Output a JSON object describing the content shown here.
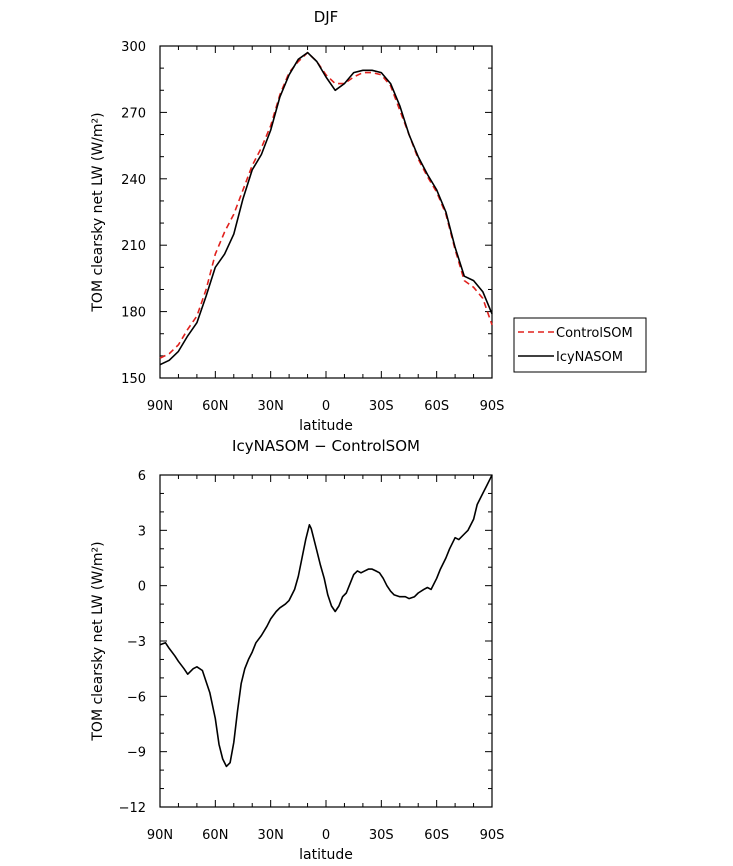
{
  "chart_data": [
    {
      "type": "line",
      "title": "DJF",
      "xlabel": "latitude",
      "ylabel": "TOM clearsky net LW (W/m²)",
      "x_tick_labels": [
        "90N",
        "60N",
        "30N",
        "0",
        "30S",
        "60S",
        "90S"
      ],
      "y_tick_labels": [
        "150",
        "180",
        "210",
        "240",
        "270",
        "300"
      ],
      "xlim": [
        -90,
        90
      ],
      "ylim": [
        150,
        300
      ],
      "grid": false,
      "legend_position": "right",
      "series": [
        {
          "name": "ControlSOM",
          "color": "#e0201c",
          "dash": "dashed",
          "x": [
            -90,
            -85,
            -80,
            -75,
            -70,
            -65,
            -60,
            -55,
            -50,
            -45,
            -40,
            -35,
            -30,
            -25,
            -20,
            -15,
            -10,
            -5,
            0,
            5,
            10,
            15,
            20,
            25,
            30,
            35,
            40,
            45,
            50,
            55,
            60,
            65,
            70,
            75,
            80,
            85,
            90
          ],
          "y": [
            159,
            161,
            165,
            172,
            178,
            190,
            206,
            216,
            224,
            235,
            246,
            254,
            264,
            278,
            288,
            293,
            297,
            293,
            287,
            283,
            283,
            286,
            288,
            288,
            287,
            282,
            271,
            260,
            249,
            241,
            234,
            224,
            208,
            194,
            191,
            186,
            174
          ]
        },
        {
          "name": "IcyNASOM",
          "color": "#000000",
          "dash": "solid",
          "x": [
            -90,
            -85,
            -80,
            -75,
            -70,
            -65,
            -60,
            -55,
            -50,
            -45,
            -40,
            -35,
            -30,
            -25,
            -20,
            -15,
            -10,
            -5,
            0,
            5,
            10,
            15,
            20,
            25,
            30,
            35,
            40,
            45,
            50,
            55,
            60,
            65,
            70,
            75,
            80,
            85,
            90
          ],
          "y": [
            156,
            158,
            162,
            169,
            175,
            187,
            200,
            206,
            215,
            231,
            244,
            251,
            262,
            277,
            287,
            294,
            297,
            293,
            286,
            280,
            283,
            288,
            289,
            289,
            288,
            283,
            273,
            260,
            250,
            242,
            235,
            225,
            209,
            196,
            194,
            189,
            179
          ]
        }
      ]
    },
    {
      "type": "line",
      "title": "IcyNASOM − ControlSOM",
      "xlabel": "latitude",
      "ylabel": "TOM clearsky net LW (W/m²)",
      "x_tick_labels": [
        "90N",
        "60N",
        "30N",
        "0",
        "30S",
        "60S",
        "90S"
      ],
      "y_tick_labels": [
        "−12",
        "−9",
        "−6",
        "−3",
        "0",
        "3",
        "6"
      ],
      "xlim": [
        -90,
        90
      ],
      "ylim": [
        -12,
        6
      ],
      "grid": false,
      "series": [
        {
          "color": "#000000",
          "x": [
            -90,
            -87,
            -85,
            -82,
            -80,
            -77,
            -75,
            -72,
            -70,
            -67,
            -65,
            -63,
            -60,
            -58,
            -56,
            -54,
            -52,
            -50,
            -48,
            -46,
            -44,
            -42,
            -40,
            -38,
            -35,
            -32,
            -30,
            -27,
            -25,
            -22,
            -20,
            -17,
            -15,
            -13,
            -11,
            -9,
            -8,
            -7,
            -5,
            -3,
            -1,
            1,
            3,
            5,
            7,
            9,
            11,
            13,
            15,
            17,
            19,
            21,
            23,
            25,
            27,
            29,
            31,
            33,
            35,
            37,
            40,
            43,
            45,
            48,
            50,
            53,
            55,
            57,
            60,
            62,
            65,
            67,
            70,
            72,
            75,
            77,
            80,
            82,
            85,
            87,
            89,
            90
          ],
          "y": [
            -3.2,
            -3.1,
            -3.4,
            -3.8,
            -4.1,
            -4.5,
            -4.8,
            -4.5,
            -4.4,
            -4.6,
            -5.2,
            -5.8,
            -7.2,
            -8.6,
            -9.4,
            -9.8,
            -9.6,
            -8.5,
            -6.8,
            -5.3,
            -4.5,
            -4.0,
            -3.6,
            -3.1,
            -2.7,
            -2.2,
            -1.8,
            -1.4,
            -1.2,
            -1.0,
            -0.8,
            -0.2,
            0.5,
            1.5,
            2.5,
            3.3,
            3.1,
            2.7,
            1.9,
            1.1,
            0.4,
            -0.5,
            -1.1,
            -1.4,
            -1.1,
            -0.6,
            -0.4,
            0.1,
            0.6,
            0.8,
            0.7,
            0.8,
            0.9,
            0.9,
            0.8,
            0.7,
            0.4,
            0.0,
            -0.3,
            -0.5,
            -0.6,
            -0.6,
            -0.7,
            -0.6,
            -0.4,
            -0.2,
            -0.1,
            -0.2,
            0.4,
            0.9,
            1.5,
            2.0,
            2.6,
            2.5,
            2.8,
            3.0,
            3.6,
            4.4,
            5.0,
            5.4,
            5.8,
            6.0
          ]
        }
      ]
    }
  ]
}
